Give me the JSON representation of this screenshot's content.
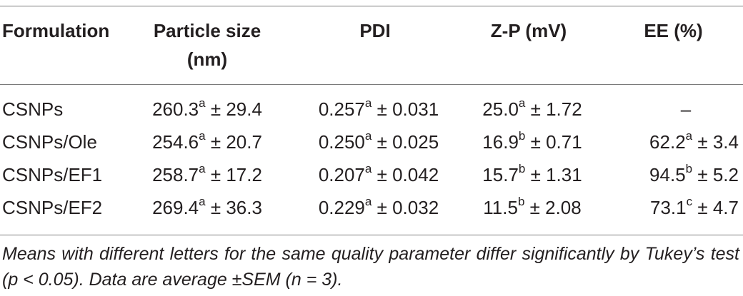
{
  "headers": {
    "formulation": "Formulation",
    "particle_size_line1": "Particle size",
    "particle_size_line2": "(nm)",
    "pdi": "PDI",
    "zp": "Z-P (mV)",
    "ee": "EE (%)"
  },
  "rows": [
    {
      "formulation": "CSNPs",
      "size_value": "260.3",
      "size_sup": "a",
      "size_err": " ± 29.4",
      "pdi_value": "0.257",
      "pdi_sup": "a",
      "pdi_err": " ± 0.031",
      "zp_value": "25.0",
      "zp_sup": "a",
      "zp_err": " ± 1.72",
      "ee_value": "–",
      "ee_sup": "",
      "ee_err": ""
    },
    {
      "formulation": "CSNPs/Ole",
      "size_value": "254.6",
      "size_sup": "a",
      "size_err": " ± 20.7",
      "pdi_value": "0.250",
      "pdi_sup": "a",
      "pdi_err": " ± 0.025",
      "zp_value": "16.9",
      "zp_sup": "b",
      "zp_err": " ± 0.71",
      "ee_value": "62.2",
      "ee_sup": "a",
      "ee_err": " ± 3.4"
    },
    {
      "formulation": "CSNPs/EF1",
      "size_value": "258.7",
      "size_sup": "a",
      "size_err": " ± 17.2",
      "pdi_value": "0.207",
      "pdi_sup": "a",
      "pdi_err": " ± 0.042",
      "zp_value": "15.7",
      "zp_sup": "b",
      "zp_err": " ± 1.31",
      "ee_value": "94.5",
      "ee_sup": "b",
      "ee_err": " ± 5.2"
    },
    {
      "formulation": "CSNPs/EF2",
      "size_value": "269.4",
      "size_sup": "a",
      "size_err": " ± 36.3",
      "pdi_value": "0.229",
      "pdi_sup": "a",
      "pdi_err": " ± 0.032",
      "zp_value": "11.5",
      "zp_sup": "b",
      "zp_err": " ± 2.08",
      "ee_value": "73.1",
      "ee_sup": "c",
      "ee_err": " ± 4.7"
    }
  ],
  "footnote": "Means with different letters for the same quality parameter differ significantly by Tukey’s test (p < 0.05). Data are average ±SEM (n = 3)."
}
